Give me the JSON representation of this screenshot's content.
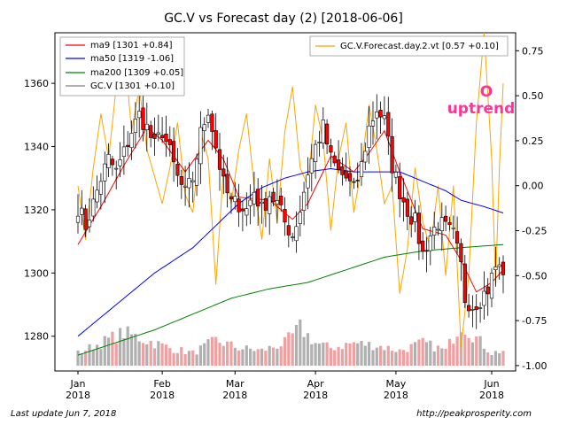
{
  "chart_data": {
    "type": "candlestick",
    "title": "GC.V vs Forecast day (2)  [2018-06-06]",
    "footer_left": "Last update Jun  7, 2018",
    "footer_right": "http://peakprosperity.com",
    "annotation": {
      "symbol": "O",
      "text": "uptrend",
      "color": "#ff3399"
    },
    "x_ticks": [
      {
        "label": "Jan\n2018",
        "idx": 0
      },
      {
        "label": "Feb\n2018",
        "idx": 22
      },
      {
        "label": "Mar\n2018",
        "idx": 41
      },
      {
        "label": "Apr\n2018",
        "idx": 62
      },
      {
        "label": "May\n2018",
        "idx": 83
      },
      {
        "label": "Jun\n2018",
        "idx": 108
      }
    ],
    "n_bars": 112,
    "y_left": {
      "min": 1269,
      "max": 1376,
      "ticks": [
        1280,
        1300,
        1320,
        1340,
        1360
      ]
    },
    "y_right": {
      "min": -1.03,
      "max": 0.85,
      "ticks": [
        "0.75",
        "0.50",
        "0.25",
        "0.00",
        "-0.25",
        "-0.50",
        "-0.75",
        "-1.00"
      ],
      "tick_values": [
        0.75,
        0.5,
        0.25,
        0,
        -0.25,
        -0.5,
        -0.75,
        -1.0
      ]
    },
    "legend_left": [
      {
        "name": "ma9 [1301 +0.84]",
        "color": "#ff0000"
      },
      {
        "name": "ma50 [1319 -1.06]",
        "color": "#0000ff"
      },
      {
        "name": "ma200 [1309 +0.05]",
        "color": "#008000"
      },
      {
        "name": "GC.V [1301 +0.10]",
        "color": "#808080"
      }
    ],
    "legend_right": [
      {
        "name": "GC.V.Forecast.day.2.vt [0.57 +0.10]",
        "color": "#ffa500"
      }
    ],
    "colors": {
      "up": "#ffffff",
      "down": "#ff0000",
      "wick": "#000000",
      "vol_up": "#b0b0b0",
      "vol_down": "#f0a0a0",
      "ma9": "#ff0000",
      "ma50": "#0000ff",
      "ma200": "#008000",
      "forecast": "#ffa500"
    },
    "close_anchors": [
      [
        0,
        1321
      ],
      [
        2,
        1315
      ],
      [
        4,
        1322
      ],
      [
        6,
        1330
      ],
      [
        8,
        1336
      ],
      [
        10,
        1332
      ],
      [
        12,
        1338
      ],
      [
        14,
        1345
      ],
      [
        16,
        1350
      ],
      [
        18,
        1346
      ],
      [
        20,
        1340
      ],
      [
        22,
        1345
      ],
      [
        24,
        1338
      ],
      [
        26,
        1330
      ],
      [
        28,
        1325
      ],
      [
        30,
        1330
      ],
      [
        32,
        1344
      ],
      [
        34,
        1352
      ],
      [
        36,
        1340
      ],
      [
        38,
        1328
      ],
      [
        40,
        1322
      ],
      [
        42,
        1322
      ],
      [
        44,
        1320
      ],
      [
        46,
        1326
      ],
      [
        48,
        1320
      ],
      [
        50,
        1325
      ],
      [
        52,
        1322
      ],
      [
        54,
        1316
      ],
      [
        56,
        1312
      ],
      [
        58,
        1320
      ],
      [
        60,
        1332
      ],
      [
        62,
        1340
      ],
      [
        64,
        1346
      ],
      [
        66,
        1336
      ],
      [
        68,
        1332
      ],
      [
        70,
        1330
      ],
      [
        72,
        1326
      ],
      [
        74,
        1334
      ],
      [
        76,
        1346
      ],
      [
        78,
        1352
      ],
      [
        80,
        1348
      ],
      [
        82,
        1334
      ],
      [
        84,
        1326
      ],
      [
        86,
        1320
      ],
      [
        88,
        1316
      ],
      [
        90,
        1306
      ],
      [
        92,
        1312
      ],
      [
        94,
        1316
      ],
      [
        96,
        1314
      ],
      [
        98,
        1312
      ],
      [
        100,
        1302
      ],
      [
        101,
        1292
      ],
      [
        103,
        1290
      ],
      [
        105,
        1292
      ],
      [
        107,
        1295
      ],
      [
        109,
        1302
      ],
      [
        111,
        1301
      ]
    ],
    "ma9_anchors": [
      [
        0,
        1309
      ],
      [
        6,
        1321
      ],
      [
        12,
        1334
      ],
      [
        18,
        1346
      ],
      [
        22,
        1342
      ],
      [
        28,
        1332
      ],
      [
        34,
        1342
      ],
      [
        38,
        1336
      ],
      [
        42,
        1324
      ],
      [
        50,
        1323
      ],
      [
        56,
        1317
      ],
      [
        60,
        1322
      ],
      [
        66,
        1337
      ],
      [
        72,
        1332
      ],
      [
        76,
        1338
      ],
      [
        80,
        1345
      ],
      [
        84,
        1332
      ],
      [
        90,
        1314
      ],
      [
        96,
        1312
      ],
      [
        100,
        1304
      ],
      [
        104,
        1294
      ],
      [
        108,
        1297
      ],
      [
        111,
        1301
      ]
    ],
    "ma50_anchors": [
      [
        0,
        1280
      ],
      [
        10,
        1290
      ],
      [
        20,
        1300
      ],
      [
        25,
        1304
      ],
      [
        30,
        1308
      ],
      [
        36,
        1315
      ],
      [
        42,
        1322
      ],
      [
        48,
        1327
      ],
      [
        54,
        1330
      ],
      [
        60,
        1332
      ],
      [
        66,
        1333
      ],
      [
        72,
        1332
      ],
      [
        78,
        1332
      ],
      [
        84,
        1332
      ],
      [
        90,
        1329
      ],
      [
        96,
        1326
      ],
      [
        100,
        1323
      ],
      [
        106,
        1321
      ],
      [
        111,
        1319
      ]
    ],
    "ma200_anchors": [
      [
        0,
        1274
      ],
      [
        10,
        1278
      ],
      [
        20,
        1282
      ],
      [
        30,
        1287
      ],
      [
        40,
        1292
      ],
      [
        50,
        1295
      ],
      [
        60,
        1297
      ],
      [
        70,
        1301
      ],
      [
        80,
        1305
      ],
      [
        90,
        1307
      ],
      [
        100,
        1308
      ],
      [
        111,
        1309
      ]
    ],
    "forecast_anchors": [
      [
        0,
        0.0
      ],
      [
        2,
        -0.3
      ],
      [
        4,
        0.1
      ],
      [
        6,
        0.4
      ],
      [
        8,
        0.15
      ],
      [
        10,
        0.55
      ],
      [
        12,
        0.8
      ],
      [
        14,
        0.3
      ],
      [
        16,
        0.55
      ],
      [
        18,
        0.2
      ],
      [
        20,
        0.05
      ],
      [
        22,
        -0.1
      ],
      [
        24,
        0.1
      ],
      [
        26,
        0.35
      ],
      [
        28,
        -0.05
      ],
      [
        30,
        -0.15
      ],
      [
        32,
        0.3
      ],
      [
        34,
        0.15
      ],
      [
        36,
        -0.55
      ],
      [
        38,
        0.1
      ],
      [
        40,
        -0.1
      ],
      [
        42,
        0.2
      ],
      [
        44,
        0.4
      ],
      [
        46,
        0.0
      ],
      [
        48,
        -0.3
      ],
      [
        50,
        0.15
      ],
      [
        52,
        -0.2
      ],
      [
        54,
        0.3
      ],
      [
        56,
        0.55
      ],
      [
        58,
        0.1
      ],
      [
        60,
        0.0
      ],
      [
        62,
        0.45
      ],
      [
        64,
        0.25
      ],
      [
        66,
        -0.25
      ],
      [
        68,
        0.15
      ],
      [
        70,
        0.35
      ],
      [
        72,
        -0.15
      ],
      [
        74,
        0.1
      ],
      [
        76,
        0.45
      ],
      [
        78,
        0.2
      ],
      [
        80,
        -0.1
      ],
      [
        82,
        0.0
      ],
      [
        84,
        -0.6
      ],
      [
        86,
        -0.35
      ],
      [
        88,
        0.1
      ],
      [
        90,
        -0.2
      ],
      [
        92,
        -0.35
      ],
      [
        94,
        0.0
      ],
      [
        96,
        -0.5
      ],
      [
        98,
        0.0
      ],
      [
        100,
        -0.9
      ],
      [
        102,
        -0.5
      ],
      [
        104,
        0.35
      ],
      [
        106,
        0.85
      ],
      [
        108,
        0.15
      ],
      [
        109,
        -0.55
      ],
      [
        110,
        0.1
      ],
      [
        111,
        0.57
      ]
    ],
    "volume_anchors": [
      [
        0,
        0.25
      ],
      [
        6,
        0.45
      ],
      [
        12,
        0.65
      ],
      [
        18,
        0.5
      ],
      [
        24,
        0.35
      ],
      [
        30,
        0.25
      ],
      [
        36,
        0.5
      ],
      [
        42,
        0.35
      ],
      [
        48,
        0.3
      ],
      [
        54,
        0.45
      ],
      [
        58,
        0.75
      ],
      [
        62,
        0.45
      ],
      [
        66,
        0.35
      ],
      [
        72,
        0.45
      ],
      [
        78,
        0.4
      ],
      [
        84,
        0.3
      ],
      [
        90,
        0.45
      ],
      [
        96,
        0.3
      ],
      [
        100,
        0.85
      ],
      [
        104,
        0.55
      ],
      [
        108,
        0.25
      ],
      [
        111,
        0.3
      ]
    ]
  }
}
